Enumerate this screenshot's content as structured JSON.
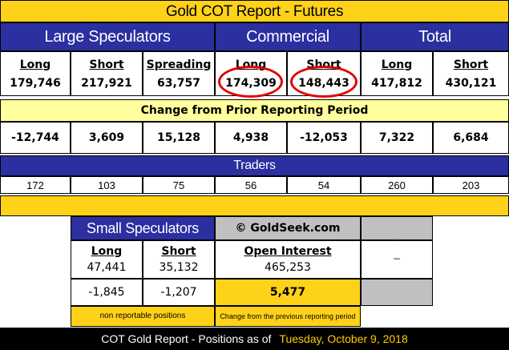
{
  "title": "Gold COT Report - Futures",
  "groups": {
    "large": "Large Speculators",
    "commercial": "Commercial",
    "total": "Total"
  },
  "columns": [
    "Long",
    "Short",
    "Spreading",
    "Long",
    "Short",
    "Long",
    "Short"
  ],
  "positions": [
    "179,746",
    "217,921",
    "63,757",
    "174,309",
    "148,443",
    "417,812",
    "430,121"
  ],
  "change_title": "Change from Prior Reporting Period",
  "changes": [
    "-12,744",
    "3,609",
    "15,128",
    "4,938",
    "-12,053",
    "7,322",
    "6,684"
  ],
  "traders_title": "Traders",
  "traders": [
    "172",
    "103",
    "75",
    "56",
    "54",
    "260",
    "203"
  ],
  "small": {
    "title": "Small Speculators",
    "long_label": "Long",
    "short_label": "Short",
    "long": "47,441",
    "short": "35,132",
    "long_change": "-1,845",
    "short_change": "-1,207",
    "note": "non reportable positions"
  },
  "credit": "© GoldSeek.com",
  "open_interest": {
    "label": "Open Interest",
    "value": "465,253",
    "change": "5,477",
    "note": "Change from the previous reporting period"
  },
  "grey_marks": [
    "_",
    "_"
  ],
  "footer": {
    "prefix": "COT Gold Report - Positions as of",
    "date": "Tuesday, October 9, 2018"
  },
  "colors": {
    "navy": "#2b2fa0",
    "yellow": "#ffd21a",
    "pale_yellow": "#ffff9e",
    "grey": "#c0c0c0",
    "highlight_circle": "#e00000",
    "footer_date": "#ffcc00"
  }
}
